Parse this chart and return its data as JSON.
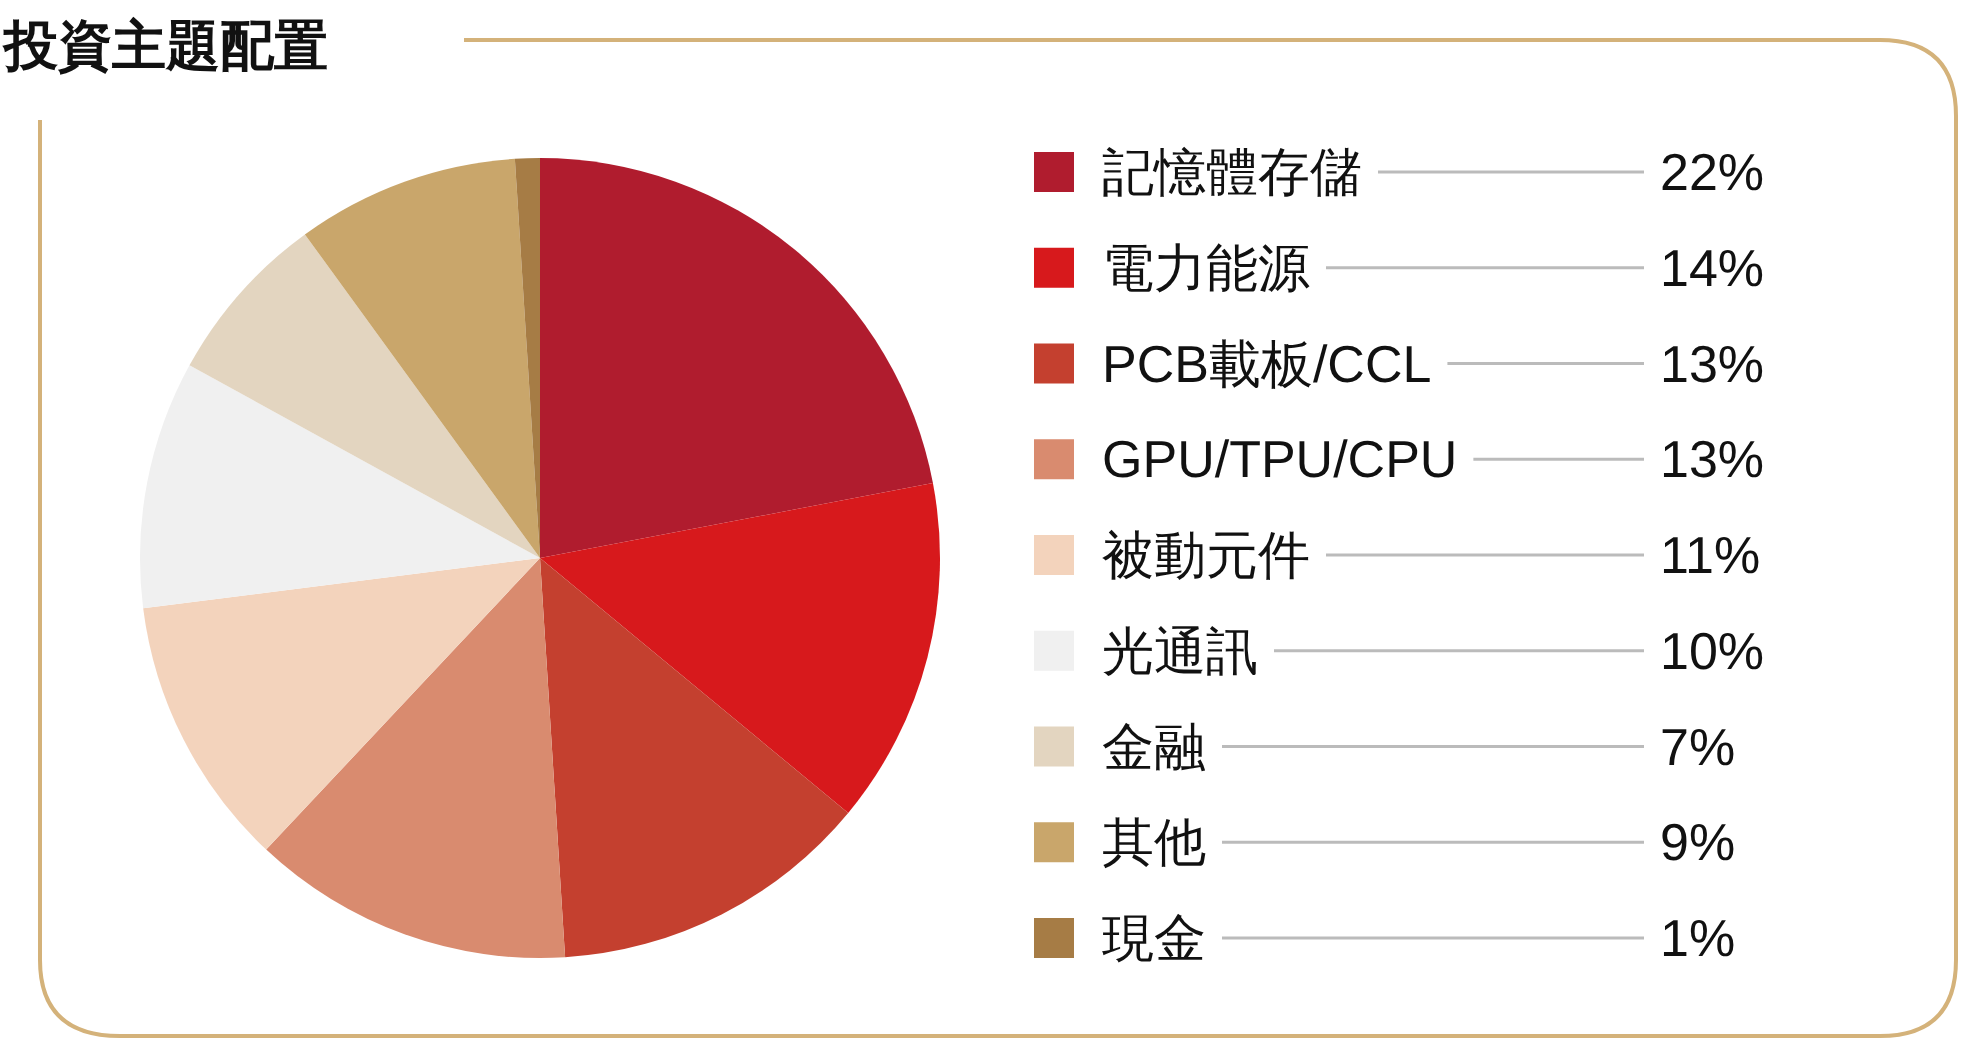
{
  "chart_data": {
    "type": "pie",
    "title": "投資主題配置",
    "categories": [
      "記憶體存儲",
      "電力能源",
      "PCB載板/CCL",
      "GPU/TPU/CPU",
      "被動元件",
      "光通訊",
      "金融",
      "其他",
      "現金"
    ],
    "values": [
      22,
      14,
      13,
      13,
      11,
      10,
      7,
      9,
      1
    ],
    "colors": [
      "#b01c2e",
      "#d7191c",
      "#c4402f",
      "#d98b6f",
      "#f3d3bc",
      "#f0f0f0",
      "#e3d5c0",
      "#c9a66b",
      "#a67c45"
    ],
    "value_labels": [
      "22%",
      "14%",
      "13%",
      "13%",
      "11%",
      "10%",
      "7%",
      "9%",
      "1%"
    ],
    "legend": "right"
  }
}
